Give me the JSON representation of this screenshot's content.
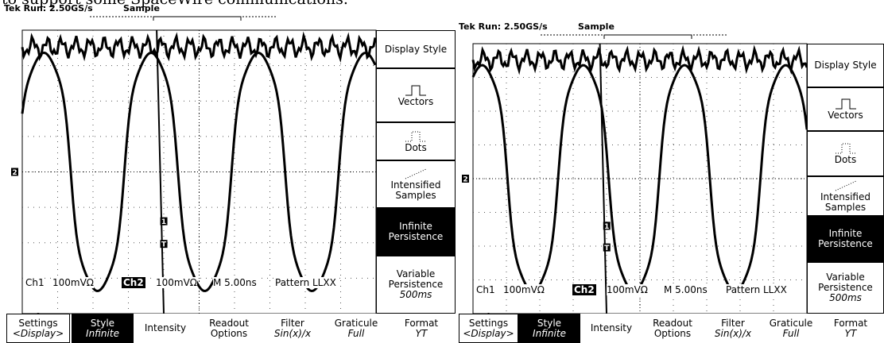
{
  "caption_fragment": "to support some SpaceWire communications.",
  "screens": [
    {
      "status": "Tek Run: 2.50GS/s",
      "mode": "Sample",
      "side_menu": [
        {
          "label": "Display Style"
        },
        {
          "label": "Vectors"
        },
        {
          "label": "Dots"
        },
        {
          "label": "Intensified Samples"
        },
        {
          "label": "Infinite Persistence",
          "highlighted": true
        },
        {
          "label": "Variable Persistence",
          "value": "500ms"
        }
      ],
      "readout": {
        "ch1": "Ch1",
        "ch1_scale": "100mVΩ",
        "ch2": "Ch2",
        "ch2_scale": "100mVΩ",
        "timebase": "M 5.00ns",
        "trigger": "Pattern LLXX"
      },
      "markers": {
        "ch2": "2",
        "ch1": "1",
        "trigger": "T"
      },
      "bottom_menu": [
        {
          "label": "Settings",
          "value": "<Display>"
        },
        {
          "label": "Style",
          "value": "Infinite",
          "highlighted": true
        },
        {
          "label": "Intensity"
        },
        {
          "label": "Readout Options"
        },
        {
          "label": "Filter",
          "value": "Sin(x)/x"
        },
        {
          "label": "Graticule",
          "value": "Full"
        },
        {
          "label": "Format",
          "value": "YT"
        }
      ]
    },
    {
      "status": "Tek Run: 2.50GS/s",
      "mode": "Sample",
      "side_menu": [
        {
          "label": "Display Style"
        },
        {
          "label": "Vectors"
        },
        {
          "label": "Dots"
        },
        {
          "label": "Intensified Samples"
        },
        {
          "label": "Infinite Persistence",
          "highlighted": true
        },
        {
          "label": "Variable Persistence",
          "value": "500ms"
        }
      ],
      "readout": {
        "ch1": "Ch1",
        "ch1_scale": "100mVΩ",
        "ch2": "Ch2",
        "ch2_scale": "100mVΩ",
        "timebase": "M 5.00ns",
        "trigger": "Pattern LLXX"
      },
      "markers": {
        "ch2": "2",
        "ch1": "1",
        "trigger": "T"
      },
      "bottom_menu": [
        {
          "label": "Settings",
          "value": "<Display>"
        },
        {
          "label": "Style",
          "value": "Infinite",
          "highlighted": true
        },
        {
          "label": "Intensity"
        },
        {
          "label": "Readout Options"
        },
        {
          "label": "Filter",
          "value": "Sin(x)/x"
        },
        {
          "label": "Graticule",
          "value": "Full"
        },
        {
          "label": "Format",
          "value": "YT"
        }
      ]
    }
  ]
}
